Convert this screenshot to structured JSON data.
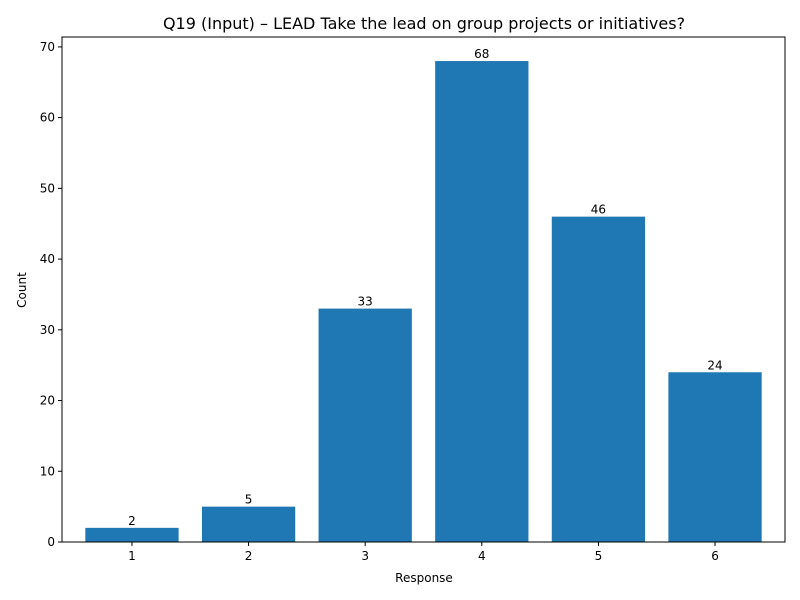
{
  "chart_data": {
    "type": "bar",
    "title": "Q19 (Input) – LEAD Take the lead on group projects or initiatives?",
    "xlabel": "Response",
    "ylabel": "Count",
    "categories": [
      "1",
      "2",
      "3",
      "4",
      "5",
      "6"
    ],
    "values": [
      2,
      5,
      33,
      68,
      46,
      24
    ],
    "ylim": [
      0,
      71.4
    ],
    "yticks": [
      0,
      10,
      20,
      30,
      40,
      50,
      60,
      70
    ],
    "bar_color": "#1f77b4",
    "grid": false,
    "legend": "none"
  }
}
